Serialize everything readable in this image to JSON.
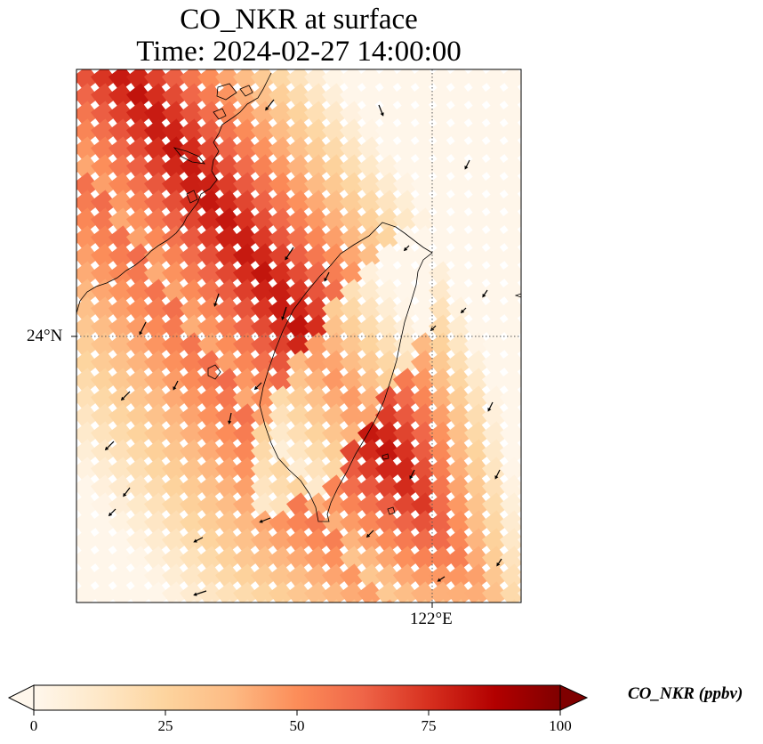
{
  "title": {
    "line1": "CO_NKR at surface",
    "line2": "Time: 2024-02-27 14:00:00"
  },
  "axes": {
    "lat_tick_label": "24°N",
    "lon_tick_label": "122°E",
    "gridlines": "dotted"
  },
  "colorbar": {
    "label": "CO_NKR (ppbv)",
    "colormap": "OrRd",
    "range": [
      0,
      100
    ],
    "extend": "both",
    "ticks": [
      "0",
      "25",
      "50",
      "75",
      "100"
    ],
    "colors": [
      "#fff7ec",
      "#fee8c8",
      "#fdd49e",
      "#fdbb84",
      "#fc8d59",
      "#ef6548",
      "#d7301f",
      "#b30000",
      "#7f0000"
    ]
  },
  "map": {
    "region": "Taiwan Strait and Taiwan",
    "field": "CO_NKR concentration",
    "overlay": "wind vectors",
    "coastline_color": "#000000"
  }
}
